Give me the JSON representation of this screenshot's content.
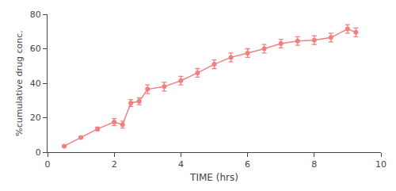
{
  "chart_data": {
    "type": "line",
    "x": [
      0.5,
      1.0,
      1.5,
      2.0,
      2.25,
      2.5,
      2.75,
      3.0,
      3.5,
      4.0,
      4.5,
      5.0,
      5.5,
      6.0,
      6.5,
      7.0,
      7.5,
      8.0,
      8.5,
      9.0,
      9.25
    ],
    "values": [
      3.5,
      8.5,
      13.5,
      17.5,
      16.0,
      28.5,
      29.5,
      36.5,
      38.0,
      41.5,
      46.0,
      51.0,
      55.0,
      57.5,
      60.0,
      63.0,
      64.5,
      65.0,
      66.5,
      71.5,
      69.5
    ],
    "yerr": [
      0.5,
      0.5,
      1.0,
      2.0,
      2.0,
      2.0,
      2.0,
      2.5,
      2.5,
      2.5,
      2.5,
      2.5,
      2.5,
      2.5,
      2.5,
      2.5,
      2.5,
      2.5,
      2.5,
      2.5,
      2.5
    ],
    "color": "#F08080",
    "marker": "circle",
    "xlabel": "TIME (hrs)",
    "ylabel": "%cumulative drug conc.",
    "xlim": [
      0,
      10
    ],
    "ylim": [
      0,
      80
    ],
    "xticks": [
      0,
      2,
      4,
      6,
      8,
      10
    ],
    "yticks": [
      0,
      20,
      40,
      60,
      80
    ],
    "grid": false
  }
}
